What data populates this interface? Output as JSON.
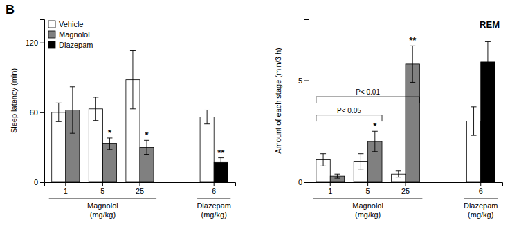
{
  "chart_data": [
    {
      "type": "bar",
      "panel": "B",
      "ylabel": "Sleep latency (min)",
      "categories": [
        "1",
        "5",
        "25",
        "6"
      ],
      "category_groups": [
        {
          "label": "Magnolol\n(mg/kg)",
          "categories": [
            "1",
            "5",
            "25"
          ]
        },
        {
          "label": "Diazepam\n(mg/kg)",
          "categories": [
            "6"
          ]
        }
      ],
      "series": [
        {
          "name": "Vehicle",
          "color": "#ffffff",
          "values": [
            60,
            63,
            88,
            56
          ],
          "errors": [
            8,
            10,
            25,
            6
          ]
        },
        {
          "name": "Magnolol",
          "color": "#808080",
          "values": [
            62,
            33,
            30,
            null
          ],
          "errors": [
            20,
            5,
            6,
            null
          ],
          "stars": [
            null,
            "*",
            "*",
            null
          ]
        },
        {
          "name": "Diazepam",
          "color": "#000000",
          "values": [
            null,
            null,
            null,
            17
          ],
          "errors": [
            null,
            null,
            null,
            4
          ],
          "stars": [
            null,
            null,
            null,
            "**"
          ]
        }
      ],
      "ylim": [
        0,
        140
      ],
      "yticks": [
        0,
        60,
        120
      ],
      "grid": false,
      "legend": "upper left"
    },
    {
      "type": "bar",
      "title": "REM",
      "ylabel": "Amount of each stage (min/3 h)",
      "categories": [
        "1",
        "5",
        "25",
        "6"
      ],
      "category_groups": [
        {
          "label": "Magnolol\n(mg/kg)",
          "categories": [
            "1",
            "5",
            "25"
          ]
        },
        {
          "label": "Diazepam\n(mg/kg)",
          "categories": [
            "6"
          ]
        }
      ],
      "series": [
        {
          "color": "#ffffff",
          "values": [
            1.1,
            1.0,
            0.4,
            3.0
          ],
          "errors": [
            0.3,
            0.4,
            0.15,
            0.7
          ]
        },
        {
          "color": "#808080",
          "values": [
            0.3,
            2.0,
            5.8,
            null
          ],
          "errors": [
            0.1,
            0.5,
            0.9,
            null
          ],
          "stars": [
            null,
            "*",
            "**",
            null
          ]
        },
        {
          "color": "#000000",
          "values": [
            null,
            null,
            null,
            5.9
          ],
          "errors": [
            null,
            null,
            null,
            1.0
          ]
        }
      ],
      "ylim": [
        0,
        8
      ],
      "yticks": [
        0,
        5
      ],
      "grid": false,
      "annotations": [
        {
          "text": "P< 0.05",
          "y": 3.3,
          "from": "1",
          "to": "5"
        },
        {
          "text": "P< 0.01",
          "y": 4.2,
          "from": "1",
          "to": "25"
        }
      ]
    }
  ]
}
